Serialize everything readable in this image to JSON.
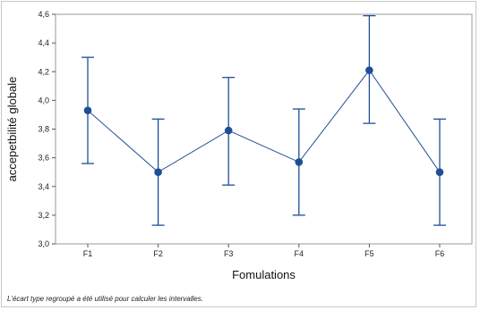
{
  "chart_data": {
    "type": "interval-plot",
    "title": "",
    "xlabel": "Fomulations",
    "ylabel": "accepetbilité globale",
    "categories": [
      "F1",
      "F2",
      "F3",
      "F4",
      "F5",
      "F6"
    ],
    "series": [
      {
        "values": [
          3.93,
          3.5,
          3.79,
          3.57,
          4.21,
          3.5
        ],
        "lower": [
          3.56,
          3.13,
          3.41,
          3.2,
          3.84,
          3.13
        ],
        "upper": [
          4.3,
          3.87,
          4.16,
          3.94,
          4.59,
          3.87
        ],
        "color": "#1f4e96"
      }
    ],
    "ylim": [
      3.0,
      4.6
    ],
    "yticks": [
      3.0,
      3.2,
      3.4,
      3.6,
      3.8,
      4.0,
      4.2,
      4.4,
      4.6
    ],
    "ytick_labels": [
      "3,0",
      "3,2",
      "3,4",
      "3,6",
      "3,8",
      "4,0",
      "4,2",
      "4,4",
      "4,6"
    ],
    "grid": false,
    "legend": "none"
  },
  "footnote": "L'écart type regroupé a été utilisé pour calculer les intervalles."
}
